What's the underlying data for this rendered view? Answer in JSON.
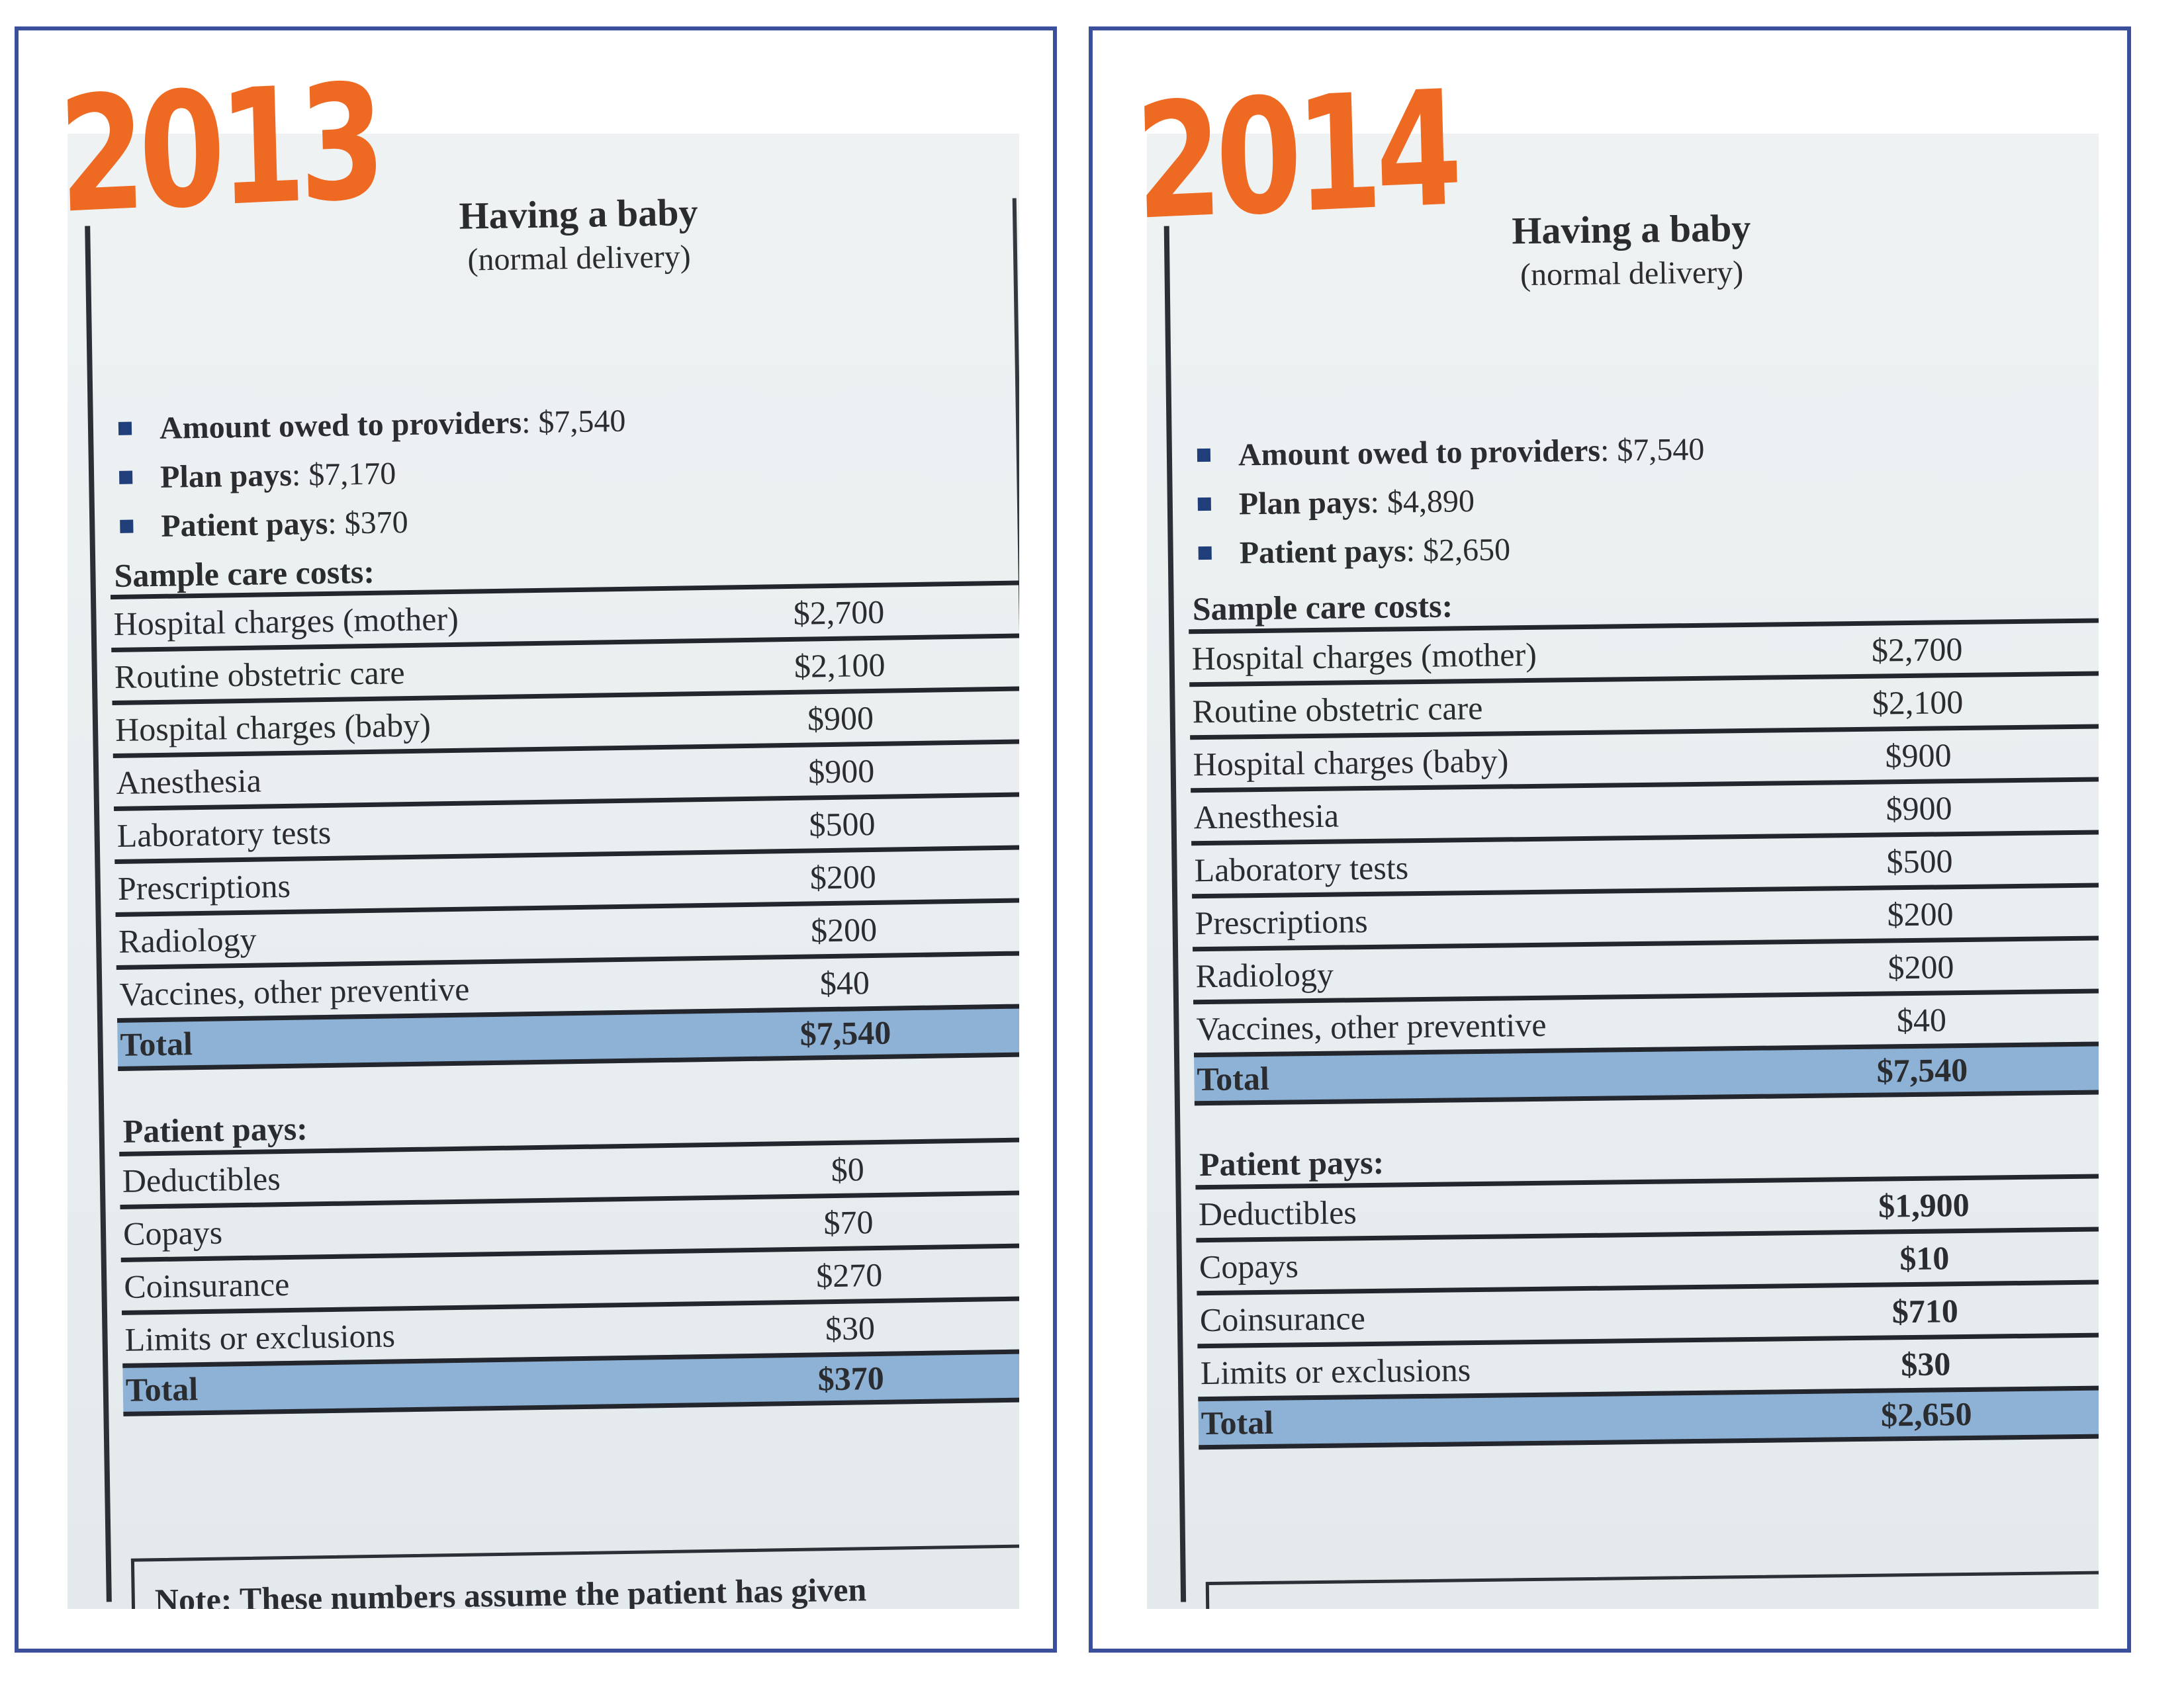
{
  "panels": [
    {
      "year": "2013",
      "title": "Having a baby",
      "subtitle": "(normal delivery)",
      "summary": [
        {
          "label": "Amount owed to providers",
          "value": "$7,540"
        },
        {
          "label": "Plan pays",
          "value": "$7,170"
        },
        {
          "label": "Patient pays",
          "value": "$370"
        }
      ],
      "sample_heading": "Sample care costs:",
      "sample_rows": [
        {
          "label": "Hospital charges (mother)",
          "amount": "$2,700"
        },
        {
          "label": "Routine obstetric care",
          "amount": "$2,100"
        },
        {
          "label": "Hospital charges (baby)",
          "amount": "$900"
        },
        {
          "label": "Anesthesia",
          "amount": "$900"
        },
        {
          "label": "Laboratory tests",
          "amount": "$500"
        },
        {
          "label": "Prescriptions",
          "amount": "$200"
        },
        {
          "label": "Radiology",
          "amount": "$200"
        },
        {
          "label": "Vaccines, other preventive",
          "amount": "$40"
        }
      ],
      "sample_total": {
        "label": "Total",
        "amount": "$7,540"
      },
      "patient_heading": "Patient pays:",
      "patient_rows": [
        {
          "label": "Deductibles",
          "amount": "$0"
        },
        {
          "label": "Copays",
          "amount": "$70"
        },
        {
          "label": "Coinsurance",
          "amount": "$270"
        },
        {
          "label": "Limits or exclusions",
          "amount": "$30"
        }
      ],
      "patient_total": {
        "label": "Total",
        "amount": "$370"
      },
      "note": "Note: These numbers assume the patient has given"
    },
    {
      "year": "2014",
      "title": "Having a baby",
      "subtitle": "(normal delivery)",
      "summary": [
        {
          "label": "Amount owed to providers",
          "value": "$7,540"
        },
        {
          "label": "Plan pays",
          "value": "$4,890"
        },
        {
          "label": "Patient pays",
          "value": "$2,650"
        }
      ],
      "sample_heading": "Sample care costs:",
      "sample_rows": [
        {
          "label": "Hospital charges (mother)",
          "amount": "$2,700"
        },
        {
          "label": "Routine obstetric care",
          "amount": "$2,100"
        },
        {
          "label": "Hospital charges (baby)",
          "amount": "$900"
        },
        {
          "label": "Anesthesia",
          "amount": "$900"
        },
        {
          "label": "Laboratory tests",
          "amount": "$500"
        },
        {
          "label": "Prescriptions",
          "amount": "$200"
        },
        {
          "label": "Radiology",
          "amount": "$200"
        },
        {
          "label": "Vaccines, other preventive",
          "amount": "$40"
        }
      ],
      "sample_total": {
        "label": "Total",
        "amount": "$7,540"
      },
      "patient_heading": "Patient pays:",
      "patient_rows": [
        {
          "label": "Deductibles",
          "amount": "$1,900"
        },
        {
          "label": "Copays",
          "amount": "$10"
        },
        {
          "label": "Coinsurance",
          "amount": "$710"
        },
        {
          "label": "Limits or exclusions",
          "amount": "$30"
        }
      ],
      "patient_total": {
        "label": "Total",
        "amount": "$2,650"
      },
      "note": ""
    }
  ],
  "colors": {
    "frame_border": "#3b4f9a",
    "year_badge": "#ee6a22",
    "total_row": "#8eb2d6",
    "bullet": "#1f3e7a"
  }
}
